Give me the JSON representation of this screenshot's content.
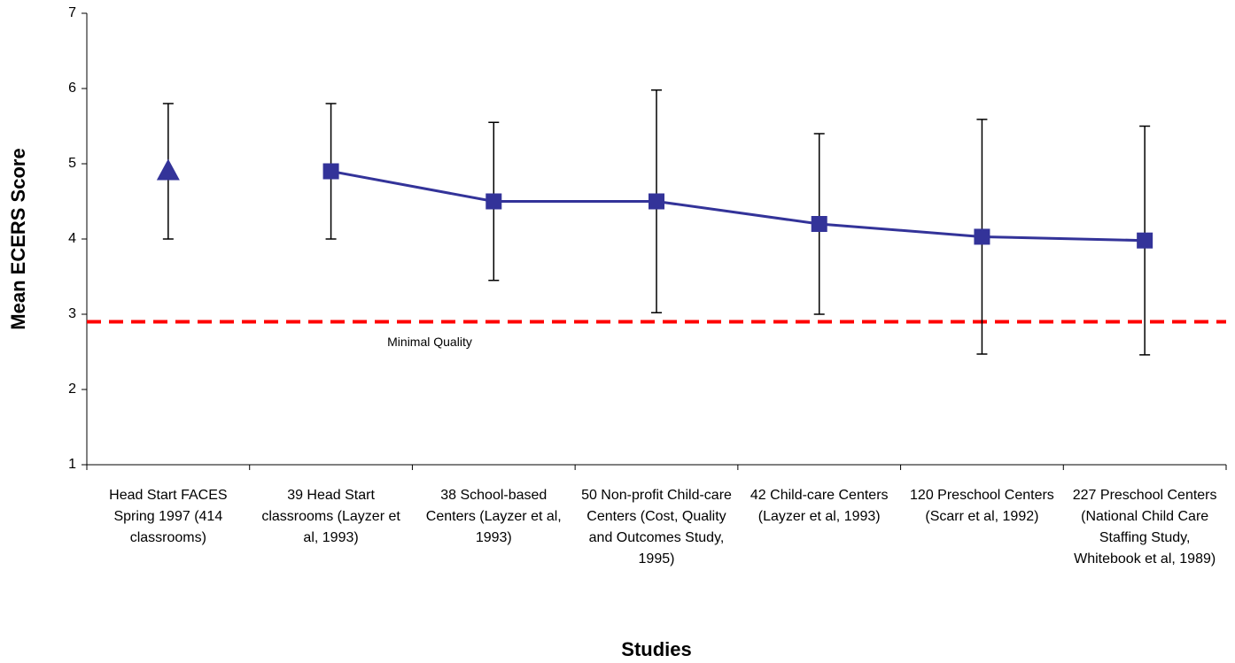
{
  "chart_data": {
    "type": "line",
    "x_label": "Studies",
    "y_label": "Mean ECERS Score",
    "categories": [
      "Head Start FACES Spring 1997 (414 classrooms)",
      "39 Head Start classrooms (Layzer et al, 1993)",
      "38 School-based Centers (Layzer et al, 1993)",
      "50 Non-profit Child-care Centers (Cost, Quality and Outcomes Study, 1995)",
      "42 Child-care Centers (Layzer et al, 1993)",
      "120 Preschool Centers (Scarr et al, 1992)",
      "227 Preschool Centers (National Child Care Staffing Study, Whitebook et al, 1989)"
    ],
    "series": [
      {
        "color": "#333399",
        "marker": "triangle",
        "line": false,
        "values": [
          4.9,
          null,
          null,
          null,
          null,
          null,
          null
        ],
        "errors": [
          0.9,
          null,
          null,
          null,
          null,
          null,
          null
        ]
      },
      {
        "color": "#333399",
        "marker": "square",
        "line": true,
        "values": [
          null,
          4.9,
          4.5,
          4.5,
          4.2,
          4.03,
          3.98
        ],
        "errors": [
          null,
          0.9,
          1.05,
          1.48,
          1.2,
          1.56,
          1.52
        ]
      }
    ],
    "reference_line": {
      "value": 2.9,
      "label": "Minimal Quality",
      "color": "#ff0000"
    },
    "ylim": [
      1,
      7
    ],
    "yticks": [
      1,
      2,
      3,
      4,
      5,
      6,
      7
    ]
  }
}
